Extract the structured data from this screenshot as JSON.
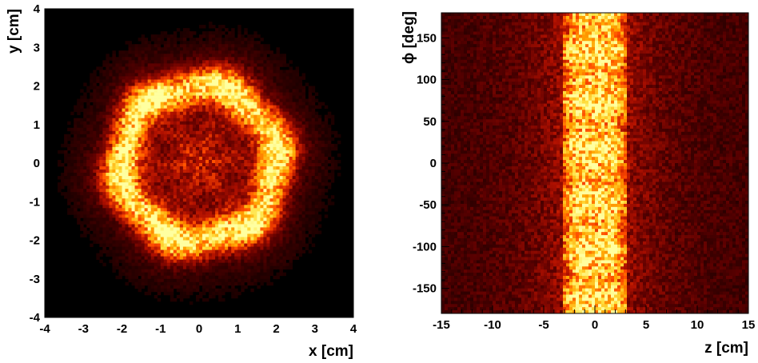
{
  "chart_data": [
    {
      "type": "heatmap",
      "title": "",
      "xlabel": "x [cm]",
      "ylabel": "y [cm]",
      "xlim": [
        -4,
        4
      ],
      "ylim": [
        -4,
        4
      ],
      "x_ticks": [
        "-4",
        "-3",
        "-2",
        "-1",
        "0",
        "1",
        "2",
        "3",
        "4"
      ],
      "y_ticks": [
        "-4",
        "-3",
        "-2",
        "-1",
        "0",
        "1",
        "2",
        "3",
        "4"
      ],
      "bins": [
        96,
        96
      ],
      "background": "#000000",
      "colormap": [
        "#000000",
        "#5a0000",
        "#b01000",
        "#ff4a00",
        "#ffa000",
        "#ffe040",
        "#ffffa0"
      ],
      "description_of_density": "ring of high counts at radius about 2 cm, lower counts inside and an outer halo extending to radius about 4 cm",
      "ring_radius": 2.0,
      "ring_width": 0.45,
      "halo_radius": 4.0,
      "grid": false
    },
    {
      "type": "heatmap",
      "title": "",
      "xlabel": "z [cm]",
      "ylabel": "ϕ [deg]",
      "xlim": [
        -15,
        15
      ],
      "ylim": [
        -180,
        180
      ],
      "x_ticks": [
        "-15",
        "-10",
        "-5",
        "0",
        "5",
        "10",
        "15"
      ],
      "y_ticks": [
        "-150",
        "-100",
        "-50",
        "0",
        "50",
        "100",
        "150"
      ],
      "bins": [
        96,
        96
      ],
      "background": "#000000",
      "colormap": [
        "#000000",
        "#5a0000",
        "#b01000",
        "#ff4a00",
        "#ffa000",
        "#ffe040",
        "#ffffa0"
      ],
      "band_z_range": [
        -3,
        3
      ],
      "grid": false
    }
  ]
}
